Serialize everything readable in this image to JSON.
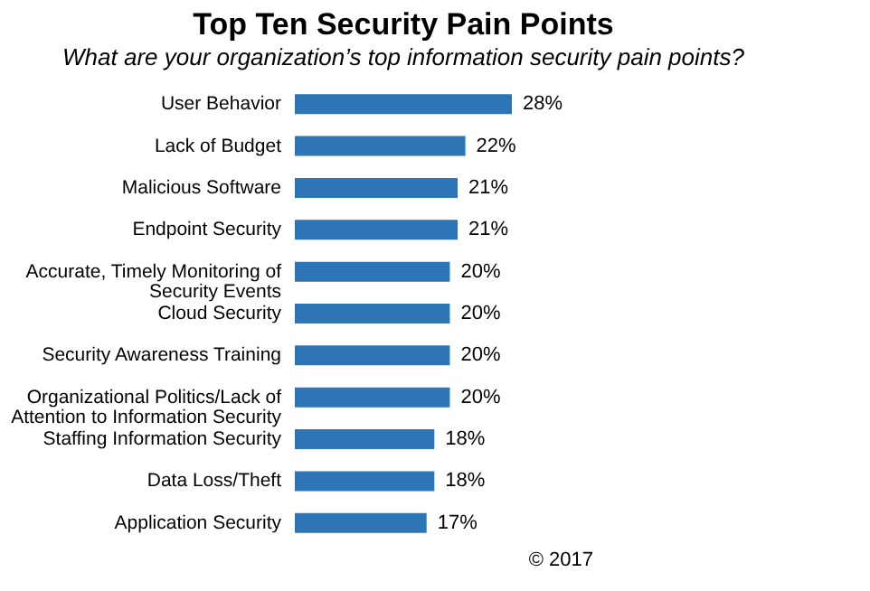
{
  "chart_data": {
    "type": "bar",
    "orientation": "horizontal",
    "title": "Top Ten Security Pain Points",
    "subtitle": "What are your organization’s top information security pain points?",
    "categories": [
      "User Behavior",
      "Lack of Budget",
      "Malicious Software",
      "Endpoint Security",
      "Accurate, Timely Monitoring of Security Events",
      "Cloud Security",
      "Security Awareness Training",
      "Organizational Politics/Lack of Attention to Information Security",
      "Staffing Information Security",
      "Data Loss/Theft",
      "Application Security"
    ],
    "values": [
      28,
      22,
      21,
      21,
      20,
      20,
      20,
      20,
      18,
      18,
      17
    ],
    "value_labels": [
      "28%",
      "22%",
      "21%",
      "21%",
      "20%",
      "20%",
      "20%",
      "20%",
      "18%",
      "18%",
      "17%"
    ],
    "color": "#2e75b6",
    "annotations": [
      "© 2017"
    ]
  }
}
